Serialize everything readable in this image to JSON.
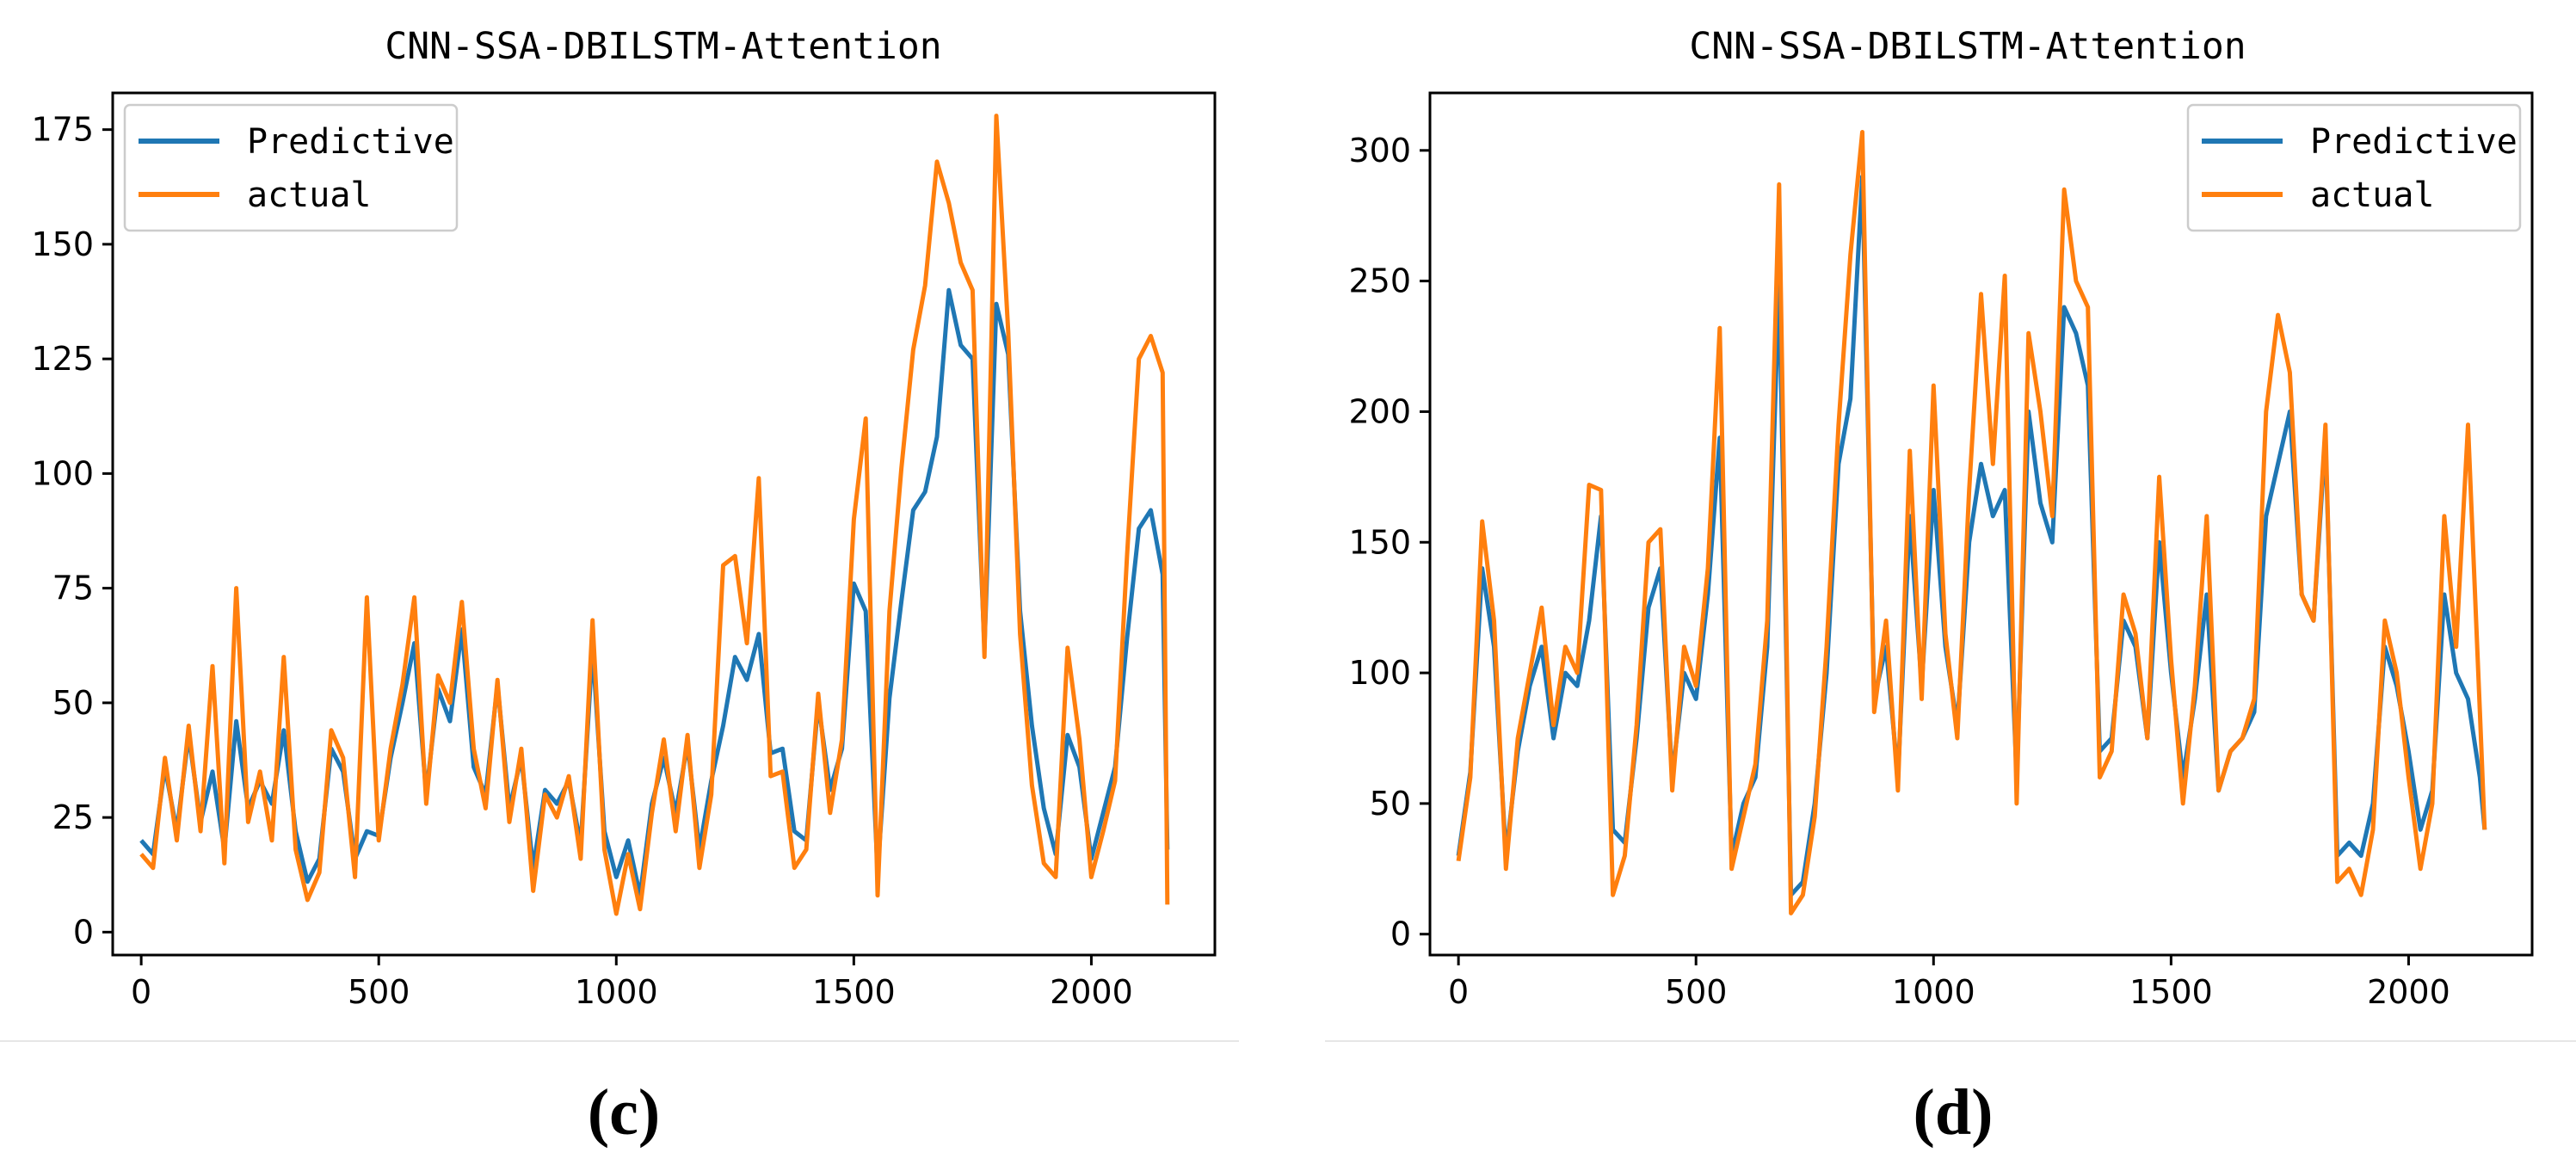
{
  "chart_data": [
    {
      "type": "line",
      "title": "CNN-SSA-DBILSTM-Attention",
      "caption": "(c)",
      "xlabel": "",
      "ylabel": "",
      "xlim": [
        -60,
        2260
      ],
      "ylim": [
        -5,
        183
      ],
      "xticks": [
        0,
        500,
        1000,
        1500,
        2000
      ],
      "yticks": [
        0,
        25,
        50,
        75,
        100,
        125,
        150,
        175
      ],
      "legend_position": "top-left",
      "colors": {
        "Predictive": "#1f77b4",
        "actual": "#ff7f0e"
      },
      "series": [
        {
          "name": "Predictive",
          "x": [
            0,
            25,
            50,
            75,
            100,
            125,
            150,
            175,
            200,
            225,
            250,
            275,
            300,
            325,
            350,
            375,
            400,
            425,
            450,
            475,
            500,
            525,
            550,
            575,
            600,
            625,
            650,
            675,
            700,
            725,
            750,
            775,
            800,
            825,
            850,
            875,
            900,
            925,
            950,
            975,
            1000,
            1025,
            1050,
            1075,
            1100,
            1125,
            1150,
            1175,
            1200,
            1225,
            1250,
            1275,
            1300,
            1325,
            1350,
            1375,
            1400,
            1425,
            1450,
            1475,
            1500,
            1525,
            1550,
            1575,
            1600,
            1625,
            1650,
            1675,
            1700,
            1725,
            1750,
            1775,
            1800,
            1825,
            1850,
            1875,
            1900,
            1925,
            1950,
            1975,
            2000,
            2025,
            2050,
            2075,
            2100,
            2125,
            2150,
            2160
          ],
          "values": [
            20,
            17,
            36,
            22,
            43,
            24,
            35,
            18,
            46,
            27,
            33,
            28,
            44,
            22,
            11,
            16,
            40,
            35,
            16,
            22,
            21,
            38,
            50,
            63,
            30,
            53,
            46,
            66,
            36,
            30,
            54,
            27,
            38,
            14,
            31,
            28,
            33,
            19,
            62,
            22,
            12,
            20,
            8,
            28,
            38,
            26,
            41,
            18,
            33,
            45,
            60,
            55,
            65,
            39,
            40,
            22,
            20,
            50,
            31,
            40,
            76,
            70,
            13,
            51,
            72,
            92,
            96,
            108,
            140,
            128,
            125,
            62,
            137,
            126,
            70,
            45,
            27,
            17,
            43,
            36,
            16,
            26,
            36,
            64,
            88,
            92,
            78,
            18
          ]
        },
        {
          "name": "actual",
          "x": [
            0,
            25,
            50,
            75,
            100,
            125,
            150,
            175,
            200,
            225,
            250,
            275,
            300,
            325,
            350,
            375,
            400,
            425,
            450,
            475,
            500,
            525,
            550,
            575,
            600,
            625,
            650,
            675,
            700,
            725,
            750,
            775,
            800,
            825,
            850,
            875,
            900,
            925,
            950,
            975,
            1000,
            1025,
            1050,
            1075,
            1100,
            1125,
            1150,
            1175,
            1200,
            1225,
            1250,
            1275,
            1300,
            1325,
            1350,
            1375,
            1400,
            1425,
            1450,
            1475,
            1500,
            1525,
            1550,
            1575,
            1600,
            1625,
            1650,
            1675,
            1700,
            1725,
            1750,
            1775,
            1800,
            1825,
            1850,
            1875,
            1900,
            1925,
            1950,
            1975,
            2000,
            2025,
            2050,
            2075,
            2100,
            2125,
            2150,
            2160
          ],
          "values": [
            17,
            14,
            38,
            20,
            45,
            22,
            58,
            15,
            75,
            24,
            35,
            20,
            60,
            18,
            7,
            13,
            44,
            38,
            12,
            73,
            20,
            40,
            54,
            73,
            28,
            56,
            50,
            72,
            40,
            27,
            55,
            24,
            40,
            9,
            30,
            25,
            34,
            16,
            68,
            18,
            4,
            17,
            5,
            26,
            42,
            22,
            43,
            14,
            30,
            80,
            82,
            63,
            99,
            34,
            35,
            14,
            18,
            52,
            26,
            42,
            90,
            112,
            8,
            70,
            101,
            127,
            141,
            168,
            159,
            146,
            140,
            60,
            178,
            131,
            65,
            32,
            15,
            12,
            62,
            42,
            12,
            22,
            33,
            82,
            125,
            130,
            122,
            6
          ]
        }
      ]
    },
    {
      "type": "line",
      "title": "CNN-SSA-DBILSTM-Attention",
      "caption": "(d)",
      "xlabel": "",
      "ylabel": "",
      "xlim": [
        -60,
        2260
      ],
      "ylim": [
        -8,
        322
      ],
      "xticks": [
        0,
        500,
        1000,
        1500,
        2000
      ],
      "yticks": [
        0,
        50,
        100,
        150,
        200,
        250,
        300
      ],
      "legend_position": "top-right",
      "colors": {
        "Predictive": "#1f77b4",
        "actual": "#ff7f0e"
      },
      "series": [
        {
          "name": "Predictive",
          "x": [
            0,
            25,
            50,
            75,
            100,
            125,
            150,
            175,
            200,
            225,
            250,
            275,
            300,
            325,
            350,
            375,
            400,
            425,
            450,
            475,
            500,
            525,
            550,
            575,
            600,
            625,
            650,
            675,
            700,
            725,
            750,
            775,
            800,
            825,
            850,
            875,
            900,
            925,
            950,
            975,
            1000,
            1025,
            1050,
            1075,
            1100,
            1125,
            1150,
            1175,
            1200,
            1225,
            1250,
            1275,
            1300,
            1325,
            1350,
            1375,
            1400,
            1425,
            1450,
            1475,
            1500,
            1525,
            1550,
            1575,
            1600,
            1625,
            1650,
            1675,
            1700,
            1725,
            1750,
            1775,
            1800,
            1825,
            1850,
            1875,
            1900,
            1925,
            1950,
            1975,
            2000,
            2025,
            2050,
            2075,
            2100,
            2125,
            2150,
            2160
          ],
          "values": [
            30,
            62,
            140,
            110,
            30,
            70,
            95,
            110,
            75,
            100,
            95,
            120,
            160,
            40,
            35,
            75,
            125,
            140,
            60,
            100,
            90,
            130,
            190,
            30,
            50,
            60,
            110,
            250,
            15,
            20,
            50,
            100,
            180,
            205,
            290,
            90,
            110,
            60,
            160,
            95,
            170,
            110,
            80,
            150,
            180,
            160,
            170,
            60,
            200,
            165,
            150,
            240,
            230,
            210,
            70,
            75,
            120,
            110,
            75,
            150,
            100,
            60,
            90,
            130,
            55,
            70,
            75,
            85,
            160,
            180,
            200,
            130,
            120,
            190,
            30,
            35,
            30,
            50,
            110,
            95,
            70,
            40,
            55,
            130,
            100,
            90,
            60,
            40
          ]
        },
        {
          "name": "actual",
          "x": [
            0,
            25,
            50,
            75,
            100,
            125,
            150,
            175,
            200,
            225,
            250,
            275,
            300,
            325,
            350,
            375,
            400,
            425,
            450,
            475,
            500,
            525,
            550,
            575,
            600,
            625,
            650,
            675,
            700,
            725,
            750,
            775,
            800,
            825,
            850,
            875,
            900,
            925,
            950,
            975,
            1000,
            1025,
            1050,
            1075,
            1100,
            1125,
            1150,
            1175,
            1200,
            1225,
            1250,
            1275,
            1300,
            1325,
            1350,
            1375,
            1400,
            1425,
            1450,
            1475,
            1500,
            1525,
            1550,
            1575,
            1600,
            1625,
            1650,
            1675,
            1700,
            1725,
            1750,
            1775,
            1800,
            1825,
            1850,
            1875,
            1900,
            1925,
            1950,
            1975,
            2000,
            2025,
            2050,
            2075,
            2100,
            2125,
            2150,
            2160
          ],
          "values": [
            28,
            60,
            158,
            120,
            25,
            75,
            100,
            125,
            80,
            110,
            100,
            172,
            170,
            15,
            30,
            80,
            150,
            155,
            55,
            110,
            95,
            140,
            232,
            25,
            45,
            65,
            120,
            287,
            8,
            15,
            45,
            110,
            195,
            260,
            307,
            85,
            120,
            55,
            185,
            90,
            210,
            115,
            75,
            170,
            245,
            180,
            252,
            50,
            230,
            200,
            160,
            285,
            250,
            240,
            60,
            70,
            130,
            115,
            75,
            175,
            105,
            50,
            95,
            160,
            55,
            70,
            75,
            90,
            200,
            237,
            215,
            130,
            120,
            195,
            20,
            25,
            15,
            40,
            120,
            100,
            60,
            25,
            50,
            160,
            110,
            195,
            85,
            40
          ]
        }
      ]
    }
  ]
}
